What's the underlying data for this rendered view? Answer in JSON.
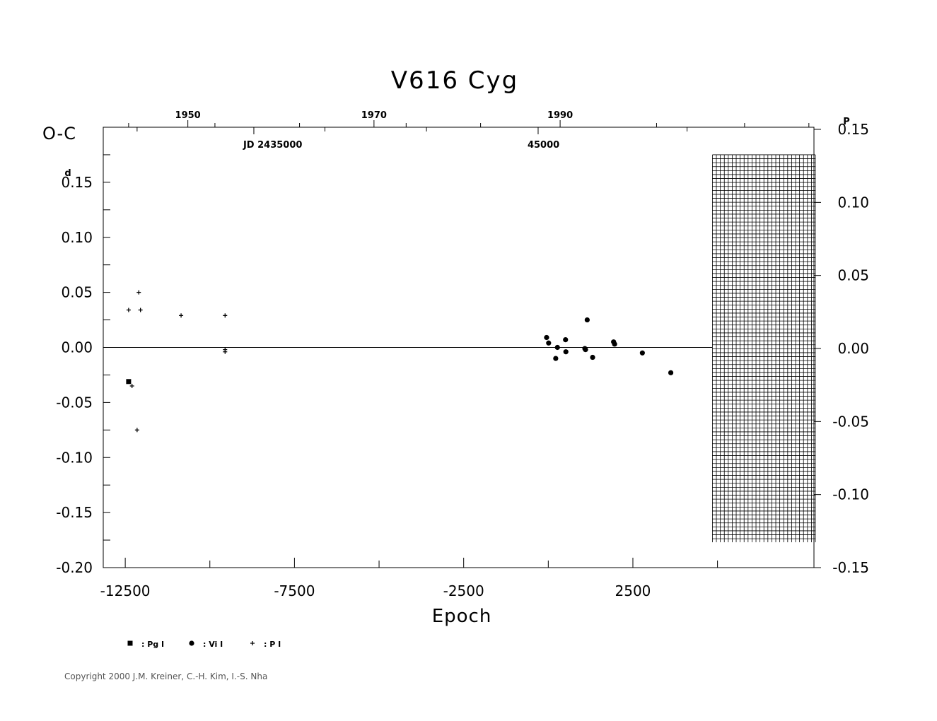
{
  "chart_data": {
    "type": "scatter",
    "title": "V616  Cyg",
    "ylabel": "O-C",
    "ylabel_unit": "d",
    "xlabel": "Epoch",
    "xlim": [
      -13150,
      7850
    ],
    "ylim": [
      -0.2,
      0.2
    ],
    "x_ticks": [
      {
        "value": -12500,
        "label": "-12500"
      },
      {
        "value": -7500,
        "label": "-7500"
      },
      {
        "value": -2500,
        "label": "-2500"
      },
      {
        "value": 2500,
        "label": "2500"
      }
    ],
    "y_ticks": [
      {
        "value": 0.15,
        "label": "0.15"
      },
      {
        "value": 0.1,
        "label": "0.10"
      },
      {
        "value": 0.05,
        "label": "0.05"
      },
      {
        "value": 0.0,
        "label": "0.00"
      },
      {
        "value": -0.05,
        "label": "-0.05"
      },
      {
        "value": -0.1,
        "label": "-0.10"
      },
      {
        "value": -0.15,
        "label": "-0.15"
      },
      {
        "value": -0.2,
        "label": "-0.20"
      }
    ],
    "y2_unit": "P",
    "y2_ticks": [
      {
        "value": 0.15,
        "label": "0.15"
      },
      {
        "value": 0.1,
        "label": "0.10"
      },
      {
        "value": 0.05,
        "label": "0.05"
      },
      {
        "value": 0.0,
        "label": "0.00"
      },
      {
        "value": -0.05,
        "label": "-0.05"
      },
      {
        "value": -0.1,
        "label": "-0.10"
      },
      {
        "value": -0.15,
        "label": "-0.15"
      }
    ],
    "top_year_ticks": [
      {
        "epoch": -10650,
        "label": "1950"
      },
      {
        "epoch": -5150,
        "label": "1970"
      },
      {
        "epoch": 350,
        "label": "1990"
      }
    ],
    "top_jd_labels": [
      {
        "epoch": -8700,
        "label": "JD 2435000"
      },
      {
        "epoch": -300,
        "label": "45000"
      }
    ],
    "hatched_region": {
      "x": [
        4850,
        7850
      ],
      "y": [
        -0.177,
        0.175
      ]
    },
    "series": [
      {
        "name": ": Pg I",
        "marker": "square",
        "points": [
          [
            -12400,
            -0.031
          ]
        ]
      },
      {
        "name": ": Vi I",
        "marker": "circle",
        "points": [
          [
            -50,
            0.009
          ],
          [
            10,
            0.004
          ],
          [
            220,
            -0.01
          ],
          [
            270,
            0.0
          ],
          [
            510,
            0.007
          ],
          [
            520,
            -0.004
          ],
          [
            1080,
            -0.001
          ],
          [
            1100,
            -0.002
          ],
          [
            1150,
            0.025
          ],
          [
            1310,
            -0.009
          ],
          [
            1930,
            0.005
          ],
          [
            1960,
            0.003
          ],
          [
            2780,
            -0.005
          ],
          [
            3620,
            -0.023
          ]
        ]
      },
      {
        "name": ": P I",
        "marker": "plus",
        "points": [
          [
            -12400,
            0.034
          ],
          [
            -12100,
            0.05
          ],
          [
            -12050,
            0.034
          ],
          [
            -12300,
            -0.035
          ],
          [
            -12150,
            -0.075
          ],
          [
            -10850,
            0.029
          ],
          [
            -9550,
            0.029
          ],
          [
            -9550,
            -0.002
          ],
          [
            -9550,
            -0.004
          ]
        ]
      }
    ]
  },
  "copyright": "Copyright 2000 J.M. Kreiner, C.-H. Kim, I.-S. Nha"
}
